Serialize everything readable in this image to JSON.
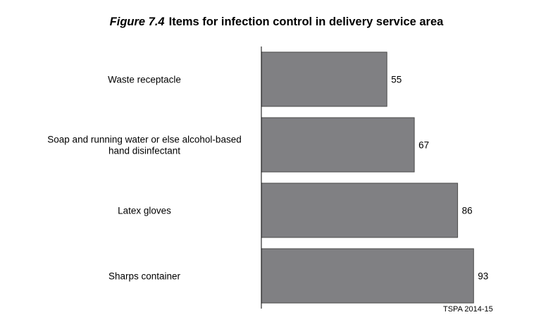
{
  "figure_label": "Figure 7.4",
  "title": "Items for infection control in delivery service area",
  "source": "TSPA 2014-15",
  "colors": {
    "bar": "#808083",
    "bar_border": "#4a4a4a",
    "axis": "#000000"
  },
  "chart_data": {
    "type": "bar",
    "orientation": "horizontal",
    "categories": [
      "Waste receptacle",
      "Soap and running water or else alcohol-based hand disinfectant",
      "Latex gloves",
      "Sharps container"
    ],
    "category_lines": [
      [
        "Waste receptacle"
      ],
      [
        "Soap and running water or else alcohol-based",
        "hand disinfectant"
      ],
      [
        "Latex gloves"
      ],
      [
        "Sharps container"
      ]
    ],
    "values": [
      55,
      67,
      86,
      93
    ],
    "xlim": [
      0,
      100
    ],
    "grid": false,
    "legend": "none"
  }
}
